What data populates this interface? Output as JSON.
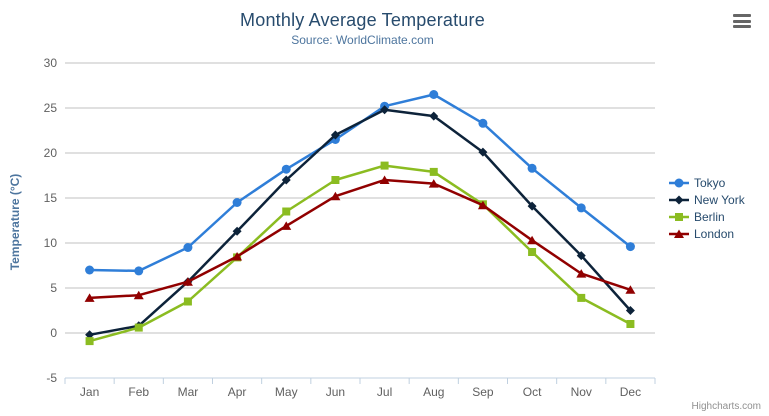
{
  "header": {
    "title": "Monthly Average Temperature",
    "subtitle": "Source: WorldClimate.com"
  },
  "credits": "Highcharts.com",
  "menu": {
    "icon": "hamburger-menu-icon"
  },
  "chart_data": {
    "type": "line",
    "title": "Monthly Average Temperature",
    "subtitle": "Source: WorldClimate.com",
    "categories": [
      "Jan",
      "Feb",
      "Mar",
      "Apr",
      "May",
      "Jun",
      "Jul",
      "Aug",
      "Sep",
      "Oct",
      "Nov",
      "Dec"
    ],
    "xlabel": "",
    "ylabel": "Temperature (°C)",
    "ylim": [
      -5,
      30
    ],
    "ytick_step": 5,
    "grid": true,
    "legend_position": "right",
    "series": [
      {
        "name": "Tokyo",
        "color": "#2f7ed8",
        "marker": "circle",
        "values": [
          7.0,
          6.9,
          9.5,
          14.5,
          18.2,
          21.5,
          25.2,
          26.5,
          23.3,
          18.3,
          13.9,
          9.6
        ]
      },
      {
        "name": "New York",
        "color": "#0d233a",
        "marker": "diamond",
        "values": [
          -0.2,
          0.8,
          5.7,
          11.3,
          17.0,
          22.0,
          24.8,
          24.1,
          20.1,
          14.1,
          8.6,
          2.5
        ]
      },
      {
        "name": "Berlin",
        "color": "#8bbc21",
        "marker": "square",
        "values": [
          -0.9,
          0.6,
          3.5,
          8.4,
          13.5,
          17.0,
          18.6,
          17.9,
          14.3,
          9.0,
          3.9,
          1.0
        ]
      },
      {
        "name": "London",
        "color": "#910000",
        "marker": "triangle",
        "values": [
          3.9,
          4.2,
          5.7,
          8.5,
          11.9,
          15.2,
          17.0,
          16.6,
          14.2,
          10.3,
          6.6,
          4.8
        ]
      }
    ]
  },
  "style_colors": {
    "grid_line": "#c0c0c0",
    "axis_line": "#c0d0e0",
    "tick_label": "#606060",
    "title_text": "#274b6d",
    "subtitle_text": "#4d759e",
    "credits_text": "#909090"
  }
}
